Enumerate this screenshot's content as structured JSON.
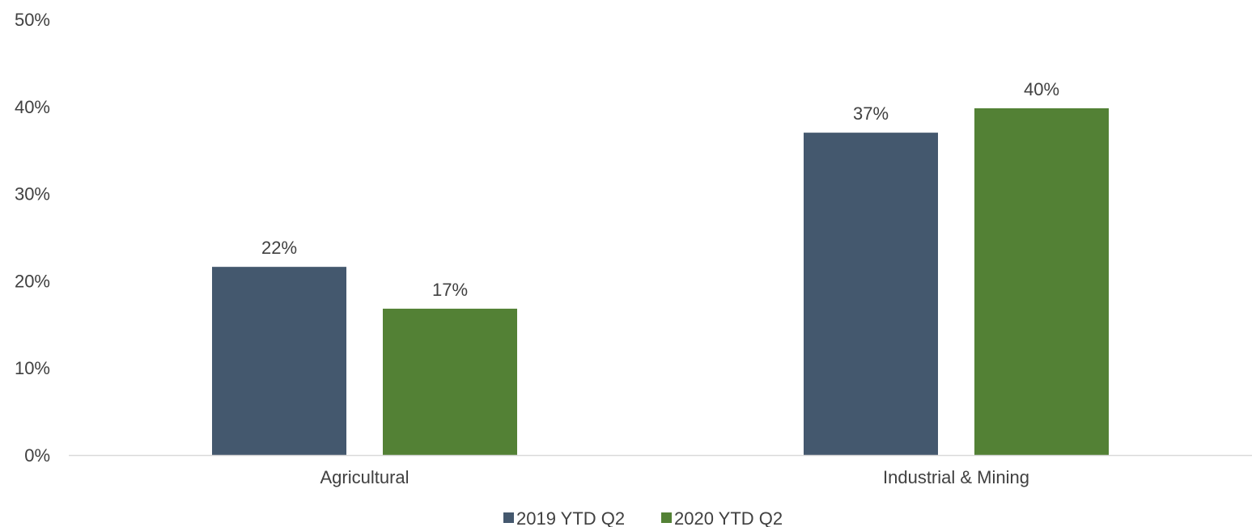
{
  "chart_data": {
    "type": "bar",
    "title": "",
    "xlabel": "",
    "ylabel": "",
    "categories": [
      "Agricultural",
      "Industrial & Mining"
    ],
    "series": [
      {
        "name": "2019 YTD Q2",
        "color": "#44586E",
        "values": [
          0.216,
          0.37
        ],
        "labels": [
          "22%",
          "37%"
        ]
      },
      {
        "name": "2020 YTD Q2",
        "color": "#538135",
        "values": [
          0.168,
          0.398
        ],
        "labels": [
          "17%",
          "40%"
        ]
      }
    ],
    "ylim": [
      0,
      0.5
    ],
    "yticks": [
      0,
      0.1,
      0.2,
      0.3,
      0.4,
      0.5
    ],
    "ytick_labels": [
      "0%",
      "10%",
      "20%",
      "30%",
      "40%",
      "50%"
    ],
    "grid": false,
    "legend_position": "bottom",
    "axis_color": "#D9D9D9",
    "text_color": "#404040"
  }
}
